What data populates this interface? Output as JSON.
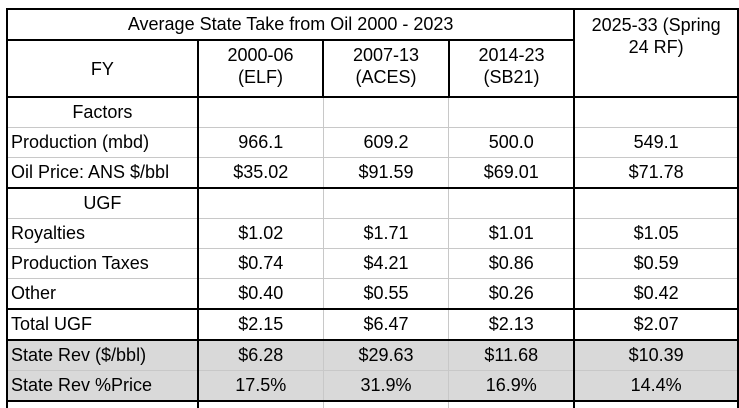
{
  "title": "Average State Take from Oil 2000 - 2023",
  "headers": {
    "fy": "FY",
    "col1_line1": "2000-06",
    "col1_line2": "(ELF)",
    "col2_line1": "2007-13",
    "col2_line2": "(ACES)",
    "col3_line1": "2014-23",
    "col3_line2": "(SB21)",
    "col4_line1": "2025-33 (Spring",
    "col4_line2": "24 RF)"
  },
  "sections": {
    "factors": "Factors",
    "ugf": "UGF"
  },
  "rows": [
    {
      "label": "Production (mbd)",
      "values": [
        "966.1",
        "609.2",
        "500.0",
        "549.1"
      ]
    },
    {
      "label": "Oil Price: ANS $/bbl",
      "values": [
        "$35.02",
        "$91.59",
        "$69.01",
        "$71.78"
      ]
    },
    {
      "label": "Royalties",
      "values": [
        "$1.02",
        "$1.71",
        "$1.01",
        "$1.05"
      ]
    },
    {
      "label": "Production Taxes",
      "values": [
        "$0.74",
        "$4.21",
        "$0.86",
        "$0.59"
      ]
    },
    {
      "label": "Other",
      "values": [
        "$0.40",
        "$0.55",
        "$0.26",
        "$0.42"
      ]
    },
    {
      "label": "Total UGF",
      "values": [
        "$2.15",
        "$6.47",
        "$2.13",
        "$2.07"
      ]
    },
    {
      "label": "State Rev ($/bbl)",
      "values": [
        "$6.28",
        "$29.63",
        "$11.68",
        "$10.39"
      ]
    },
    {
      "label": "State Rev %Price",
      "values": [
        "17.5%",
        "31.9%",
        "16.9%",
        "14.4%"
      ]
    }
  ]
}
